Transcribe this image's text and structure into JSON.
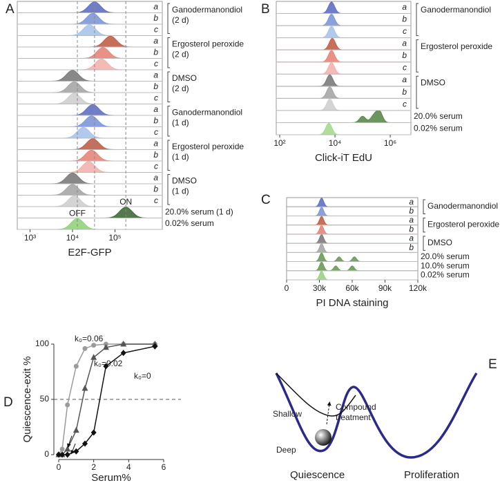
{
  "chart_data": [
    {
      "type": "ridgeline",
      "panel": "A",
      "xlabel": "E2F-GFP",
      "xscale": "log",
      "xlim": [
        500,
        1300000
      ],
      "xticks": [
        {
          "value": 1000,
          "label": "10³"
        },
        {
          "value": 10000,
          "label": "10⁴"
        },
        {
          "value": 100000,
          "label": "10⁵"
        }
      ],
      "groups": [
        {
          "label": [
            "Ganodermanondiol",
            "(2 d)"
          ],
          "rows": [
            {
              "label": "a",
              "color": "#6170c4",
              "peaks": [
                33000
              ]
            },
            {
              "label": "b",
              "color": "#7d97d8",
              "peaks": [
                30000
              ]
            },
            {
              "label": "c",
              "color": "#a9c4ea",
              "peaks": [
                25000
              ]
            }
          ]
        },
        {
          "label": [
            "Ergosterol peroxide",
            "(2 d)"
          ],
          "rows": [
            {
              "label": "a",
              "color": "#c0614a",
              "peaks": [
                78000
              ]
            },
            {
              "label": "b",
              "color": "#e8857a",
              "peaks": [
                52000
              ]
            },
            {
              "label": "c",
              "color": "#f2b3ae",
              "peaks": [
                48000
              ]
            }
          ]
        },
        {
          "label": [
            "DMSO",
            "(2 d)"
          ],
          "rows": [
            {
              "label": "a",
              "color": "#7b7b7b",
              "peaks": [
                10000
              ]
            },
            {
              "label": "b",
              "color": "#a6a6a6",
              "peaks": [
                11000
              ]
            },
            {
              "label": "c",
              "color": "#cfcfcf",
              "peaks": [
                11000
              ]
            }
          ]
        },
        {
          "label": [
            "Ganodermanondiol",
            "(1 d)"
          ],
          "rows": [
            {
              "label": "a",
              "color": "#6170c4",
              "peaks": [
                30000
              ]
            },
            {
              "label": "b",
              "color": "#7d97d8",
              "peaks": [
                28000
              ]
            },
            {
              "label": "c",
              "color": "#a9c4ea",
              "peaks": [
                18000
              ]
            }
          ]
        },
        {
          "label": [
            "Ergosterol peroxide",
            "(1 d)"
          ],
          "rows": [
            {
              "label": "a",
              "color": "#c0614a",
              "peaks": [
                30000
              ]
            },
            {
              "label": "b",
              "color": "#e8857a",
              "peaks": [
                28000
              ]
            },
            {
              "label": "c",
              "color": "#f2b3ae",
              "peaks": [
                24000
              ]
            }
          ]
        },
        {
          "label": [
            "DMSO",
            "(1 d)"
          ],
          "rows": [
            {
              "label": "a",
              "color": "#7b7b7b",
              "peaks": [
                10000
              ]
            },
            {
              "label": "b",
              "color": "#a6a6a6",
              "peaks": [
                10000
              ]
            },
            {
              "label": "c",
              "color": "#cfcfcf",
              "peaks": [
                11000
              ]
            }
          ]
        }
      ],
      "controls": [
        {
          "label": "20.0% serum (1 d)",
          "color": "#3f6b3a",
          "peaks": [
            180000
          ],
          "annotation": "ON"
        },
        {
          "label": "0.02% serum",
          "color": "#92d47c",
          "peaks": [
            13000
          ],
          "annotation": "OFF"
        }
      ]
    },
    {
      "type": "ridgeline",
      "panel": "B",
      "xlabel": "Click-iT EdU",
      "xscale": "log",
      "xlim": [
        75,
        5600000
      ],
      "xticks": [
        {
          "value": 100,
          "label": "10²"
        },
        {
          "value": 10000,
          "label": "10⁴"
        },
        {
          "value": 1000000,
          "label": "10⁶"
        }
      ],
      "groups": [
        {
          "label": [
            "Ganodermanondiol"
          ],
          "rows": [
            {
              "label": "a",
              "color": "#6170c4",
              "peaks": [
                7500
              ]
            },
            {
              "label": "b",
              "color": "#7d97d8",
              "peaks": [
                7500
              ]
            },
            {
              "label": "c",
              "color": "#a9c4ea",
              "peaks": [
                7500
              ]
            }
          ]
        },
        {
          "label": [
            "Ergosterol peroxide"
          ],
          "rows": [
            {
              "label": "a",
              "color": "#c0614a",
              "peaks": [
                8000
              ]
            },
            {
              "label": "b",
              "color": "#e8857a",
              "peaks": [
                7500
              ]
            },
            {
              "label": "c",
              "color": "#f2b3ae",
              "peaks": [
                7500
              ]
            }
          ]
        },
        {
          "label": [
            "DMSO"
          ],
          "rows": [
            {
              "label": "a",
              "color": "#7b7b7b",
              "peaks": [
                6500
              ]
            },
            {
              "label": "b",
              "color": "#a6a6a6",
              "peaks": [
                6500
              ]
            },
            {
              "label": "c",
              "color": "#cfcfcf",
              "peaks": [
                6500
              ]
            }
          ]
        }
      ],
      "controls": [
        {
          "label": "20.0% serum",
          "color": "#5b8a4a",
          "peaks": [
            400000,
            250000,
            100000
          ]
        },
        {
          "label": "0.02% serum",
          "color": "#a6da8e",
          "peaks": [
            6000
          ]
        }
      ]
    },
    {
      "type": "ridgeline",
      "panel": "C",
      "xlabel": "PI DNA staining",
      "xscale": "linear",
      "xlim": [
        0,
        120000
      ],
      "xticks": [
        0,
        {
          "value": 30000,
          "label": "30k"
        },
        {
          "value": 60000,
          "label": "60k"
        },
        {
          "value": 90000,
          "label": "90k"
        },
        {
          "value": 120000,
          "label": "120k"
        }
      ],
      "groups": [
        {
          "label": [
            "Ganodermanondiol"
          ],
          "rows": [
            {
              "label": "a",
              "color": "#6170c4",
              "peaks": [
                32000
              ]
            },
            {
              "label": "b",
              "color": "#7d97d8",
              "peaks": [
                32000
              ]
            }
          ]
        },
        {
          "label": [
            "Ergosterol peroxide"
          ],
          "rows": [
            {
              "label": "a",
              "color": "#c0614a",
              "peaks": [
                32000
              ]
            },
            {
              "label": "b",
              "color": "#e8857a",
              "peaks": [
                32000
              ]
            }
          ]
        },
        {
          "label": [
            "DMSO"
          ],
          "rows": [
            {
              "label": "a",
              "color": "#7b7b7b",
              "peaks": [
                32000
              ]
            },
            {
              "label": "b",
              "color": "#a6a6a6",
              "peaks": [
                32000
              ]
            }
          ]
        }
      ],
      "controls": [
        {
          "label": "20.0% serum",
          "color": "#6a9c58",
          "peaks": [
            32000,
            48000,
            62000
          ]
        },
        {
          "label": "10.0% serum",
          "color": "#6a9c58",
          "peaks": [
            32000,
            45000,
            60000
          ]
        },
        {
          "label": "0.02% serum",
          "color": "#9bd384",
          "peaks": [
            32000
          ]
        }
      ]
    },
    {
      "type": "line",
      "panel": "D",
      "xlabel": "Serum%",
      "ylabel": "Quiescence-exit %",
      "x": [
        0,
        0.2,
        0.5,
        1,
        1.5,
        2,
        2.7,
        3.7,
        5.5
      ],
      "xlim": [
        0,
        6
      ],
      "xticks": [
        0,
        2,
        4,
        6
      ],
      "ylim": [
        0,
        100
      ],
      "yticks": [
        0,
        50,
        100
      ],
      "reference_line": 50,
      "series": [
        {
          "name": "k₀=0.06",
          "color": "#9a9a9a",
          "marker": "circle",
          "values": [
            0,
            5,
            45,
            80,
            96,
            99,
            100,
            100,
            100
          ]
        },
        {
          "name": "k₀=0.02",
          "color": "#555555",
          "marker": "triangle",
          "values": [
            0,
            0,
            5,
            22,
            60,
            88,
            97,
            100,
            100
          ]
        },
        {
          "name": "k₀=0",
          "color": "#111111",
          "marker": "diamond",
          "values": [
            0,
            0,
            0,
            3,
            10,
            20,
            80,
            92,
            98
          ]
        }
      ]
    }
  ],
  "diagram": {
    "panel": "E",
    "shallow": "Shallow",
    "deep": "Deep",
    "treatment": [
      "Compound",
      "treatment"
    ],
    "quiescence": "Quiescence",
    "proliferation": "Proliferation"
  }
}
